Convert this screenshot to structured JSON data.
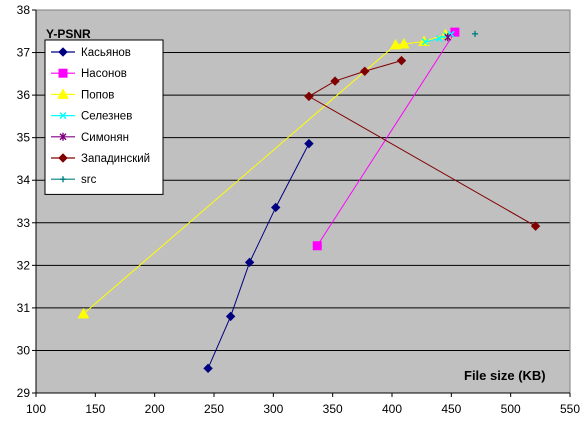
{
  "chart_data": {
    "type": "line",
    "title": "Y-PSNR",
    "xlabel": "File size (KB)",
    "ylabel": "",
    "xlim": [
      100,
      550
    ],
    "ylim": [
      29,
      38
    ],
    "x_ticks": [
      100,
      150,
      200,
      250,
      300,
      350,
      400,
      450,
      500,
      550
    ],
    "y_ticks": [
      29,
      30,
      31,
      32,
      33,
      34,
      35,
      36,
      37,
      38
    ],
    "grid": "horizontal",
    "legend_position": "top-left",
    "plot_background": "#c0c0c0",
    "series": [
      {
        "name": "Касьянов",
        "color": "#000080",
        "marker": "diamond",
        "points": [
          [
            245,
            29.58
          ],
          [
            264,
            30.8
          ],
          [
            280,
            32.07
          ],
          [
            302,
            33.36
          ],
          [
            330,
            34.86
          ]
        ]
      },
      {
        "name": "Насонов",
        "color": "#ff00ff",
        "marker": "square",
        "points": [
          [
            337,
            32.46
          ],
          [
            453,
            37.48
          ]
        ]
      },
      {
        "name": "Попов",
        "color": "#ffff00",
        "marker": "triangle",
        "points": [
          [
            140,
            30.86
          ],
          [
            403,
            37.18
          ],
          [
            410,
            37.2
          ],
          [
            427,
            37.26
          ],
          [
            445,
            37.42
          ]
        ]
      },
      {
        "name": "Селезнев",
        "color": "#00ffff",
        "marker": "x",
        "points": [
          [
            428,
            37.25
          ],
          [
            440,
            37.33
          ],
          [
            446,
            37.4
          ],
          [
            450,
            37.43
          ]
        ]
      },
      {
        "name": "Симонян",
        "color": "#800080",
        "marker": "star",
        "points": [
          [
            447,
            37.36
          ]
        ]
      },
      {
        "name": "Западинский",
        "color": "#800000",
        "marker": "diamond",
        "points": [
          [
            521,
            32.92
          ],
          [
            330,
            35.97
          ],
          [
            352,
            36.33
          ],
          [
            377,
            36.56
          ],
          [
            408,
            36.81
          ]
        ]
      },
      {
        "name": "src",
        "color": "#008080",
        "marker": "plus",
        "points": [
          [
            470,
            37.44
          ]
        ]
      }
    ]
  }
}
